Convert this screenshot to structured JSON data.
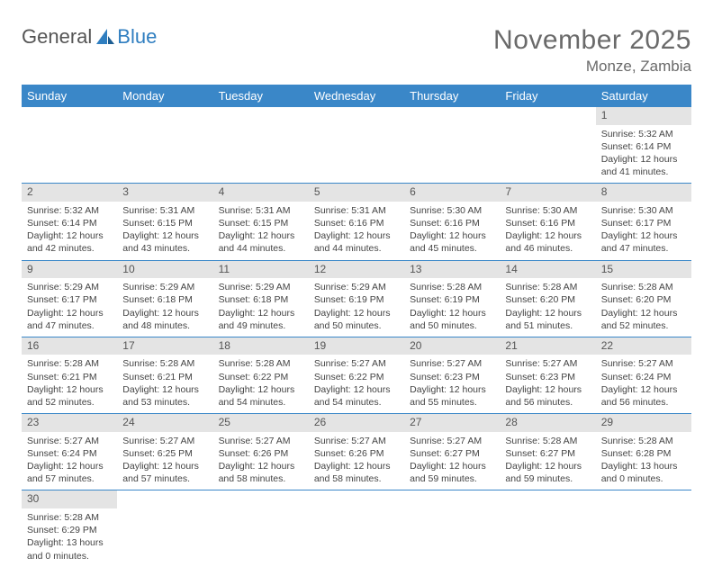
{
  "logo": {
    "word1": "General",
    "word2": "Blue"
  },
  "title": {
    "month": "November 2025",
    "location": "Monze, Zambia"
  },
  "weekdays": [
    "Sunday",
    "Monday",
    "Tuesday",
    "Wednesday",
    "Thursday",
    "Friday",
    "Saturday"
  ],
  "colors": {
    "header_bg": "#3a87c8",
    "header_text": "#ffffff",
    "daynum_bg": "#e4e4e4",
    "rule": "#3a87c8",
    "logo_gray": "#555555",
    "logo_blue": "#2f7ec0",
    "title_gray": "#6a6a6a"
  },
  "labels": {
    "sunrise": "Sunrise:",
    "sunset": "Sunset:",
    "daylight": "Daylight:"
  },
  "grid": [
    [
      null,
      null,
      null,
      null,
      null,
      null,
      {
        "n": "1",
        "sunrise": "5:32 AM",
        "sunset": "6:14 PM",
        "daylight": "12 hours and 41 minutes."
      }
    ],
    [
      {
        "n": "2",
        "sunrise": "5:32 AM",
        "sunset": "6:14 PM",
        "daylight": "12 hours and 42 minutes."
      },
      {
        "n": "3",
        "sunrise": "5:31 AM",
        "sunset": "6:15 PM",
        "daylight": "12 hours and 43 minutes."
      },
      {
        "n": "4",
        "sunrise": "5:31 AM",
        "sunset": "6:15 PM",
        "daylight": "12 hours and 44 minutes."
      },
      {
        "n": "5",
        "sunrise": "5:31 AM",
        "sunset": "6:16 PM",
        "daylight": "12 hours and 44 minutes."
      },
      {
        "n": "6",
        "sunrise": "5:30 AM",
        "sunset": "6:16 PM",
        "daylight": "12 hours and 45 minutes."
      },
      {
        "n": "7",
        "sunrise": "5:30 AM",
        "sunset": "6:16 PM",
        "daylight": "12 hours and 46 minutes."
      },
      {
        "n": "8",
        "sunrise": "5:30 AM",
        "sunset": "6:17 PM",
        "daylight": "12 hours and 47 minutes."
      }
    ],
    [
      {
        "n": "9",
        "sunrise": "5:29 AM",
        "sunset": "6:17 PM",
        "daylight": "12 hours and 47 minutes."
      },
      {
        "n": "10",
        "sunrise": "5:29 AM",
        "sunset": "6:18 PM",
        "daylight": "12 hours and 48 minutes."
      },
      {
        "n": "11",
        "sunrise": "5:29 AM",
        "sunset": "6:18 PM",
        "daylight": "12 hours and 49 minutes."
      },
      {
        "n": "12",
        "sunrise": "5:29 AM",
        "sunset": "6:19 PM",
        "daylight": "12 hours and 50 minutes."
      },
      {
        "n": "13",
        "sunrise": "5:28 AM",
        "sunset": "6:19 PM",
        "daylight": "12 hours and 50 minutes."
      },
      {
        "n": "14",
        "sunrise": "5:28 AM",
        "sunset": "6:20 PM",
        "daylight": "12 hours and 51 minutes."
      },
      {
        "n": "15",
        "sunrise": "5:28 AM",
        "sunset": "6:20 PM",
        "daylight": "12 hours and 52 minutes."
      }
    ],
    [
      {
        "n": "16",
        "sunrise": "5:28 AM",
        "sunset": "6:21 PM",
        "daylight": "12 hours and 52 minutes."
      },
      {
        "n": "17",
        "sunrise": "5:28 AM",
        "sunset": "6:21 PM",
        "daylight": "12 hours and 53 minutes."
      },
      {
        "n": "18",
        "sunrise": "5:28 AM",
        "sunset": "6:22 PM",
        "daylight": "12 hours and 54 minutes."
      },
      {
        "n": "19",
        "sunrise": "5:27 AM",
        "sunset": "6:22 PM",
        "daylight": "12 hours and 54 minutes."
      },
      {
        "n": "20",
        "sunrise": "5:27 AM",
        "sunset": "6:23 PM",
        "daylight": "12 hours and 55 minutes."
      },
      {
        "n": "21",
        "sunrise": "5:27 AM",
        "sunset": "6:23 PM",
        "daylight": "12 hours and 56 minutes."
      },
      {
        "n": "22",
        "sunrise": "5:27 AM",
        "sunset": "6:24 PM",
        "daylight": "12 hours and 56 minutes."
      }
    ],
    [
      {
        "n": "23",
        "sunrise": "5:27 AM",
        "sunset": "6:24 PM",
        "daylight": "12 hours and 57 minutes."
      },
      {
        "n": "24",
        "sunrise": "5:27 AM",
        "sunset": "6:25 PM",
        "daylight": "12 hours and 57 minutes."
      },
      {
        "n": "25",
        "sunrise": "5:27 AM",
        "sunset": "6:26 PM",
        "daylight": "12 hours and 58 minutes."
      },
      {
        "n": "26",
        "sunrise": "5:27 AM",
        "sunset": "6:26 PM",
        "daylight": "12 hours and 58 minutes."
      },
      {
        "n": "27",
        "sunrise": "5:27 AM",
        "sunset": "6:27 PM",
        "daylight": "12 hours and 59 minutes."
      },
      {
        "n": "28",
        "sunrise": "5:28 AM",
        "sunset": "6:27 PM",
        "daylight": "12 hours and 59 minutes."
      },
      {
        "n": "29",
        "sunrise": "5:28 AM",
        "sunset": "6:28 PM",
        "daylight": "13 hours and 0 minutes."
      }
    ],
    [
      {
        "n": "30",
        "sunrise": "5:28 AM",
        "sunset": "6:29 PM",
        "daylight": "13 hours and 0 minutes."
      },
      null,
      null,
      null,
      null,
      null,
      null
    ]
  ]
}
